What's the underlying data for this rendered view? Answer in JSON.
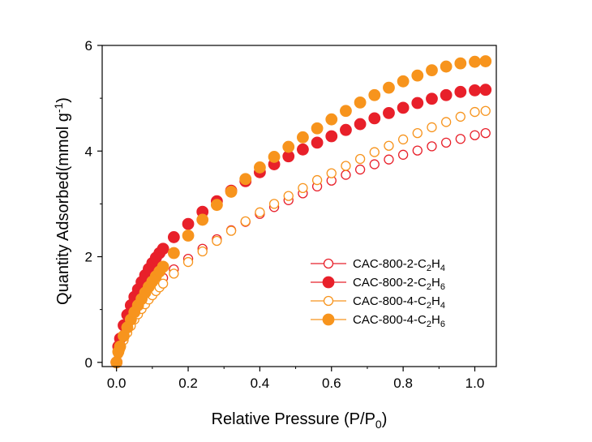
{
  "chart_data": {
    "type": "scatter",
    "xlabel": "Relative Pressure (P/P0)",
    "xlabel_parts": {
      "main": "Relative Pressure (P/P",
      "sub": "0",
      "tail": ")"
    },
    "ylabel": "Quantity Adsorbed(mmol g-1)",
    "ylabel_parts": {
      "main": "Quantity Adsorbed(mmol g",
      "sup": "-1",
      "tail": ")"
    },
    "xlim": [
      -0.04,
      1.06
    ],
    "ylim": [
      -0.08,
      6.0
    ],
    "xticks": [
      "0.0",
      "0.2",
      "0.4",
      "0.6",
      "0.8",
      "1.0"
    ],
    "yticks": [
      "0",
      "2",
      "4",
      "6"
    ],
    "grid": false,
    "legend_position": "lower-right",
    "series": [
      {
        "name": "CAC-800-2-C2H4",
        "label_parts": {
          "main": "CAC-800-2-C",
          "sub1": "2",
          "mid": "H",
          "sub2": "4"
        },
        "color": "#e8202a",
        "marker": "open-circle",
        "x": [
          0.0,
          0.005,
          0.01,
          0.02,
          0.03,
          0.04,
          0.05,
          0.06,
          0.07,
          0.08,
          0.09,
          0.1,
          0.11,
          0.12,
          0.13,
          0.16,
          0.2,
          0.24,
          0.28,
          0.32,
          0.36,
          0.4,
          0.44,
          0.48,
          0.52,
          0.56,
          0.6,
          0.64,
          0.68,
          0.72,
          0.76,
          0.8,
          0.84,
          0.88,
          0.92,
          0.96,
          1.0,
          1.03
        ],
        "y": [
          0.0,
          0.22,
          0.33,
          0.52,
          0.67,
          0.81,
          0.93,
          1.04,
          1.13,
          1.22,
          1.31,
          1.39,
          1.46,
          1.53,
          1.6,
          1.76,
          1.96,
          2.15,
          2.33,
          2.5,
          2.66,
          2.81,
          2.94,
          3.07,
          3.2,
          3.33,
          3.44,
          3.55,
          3.65,
          3.75,
          3.84,
          3.93,
          4.01,
          4.09,
          4.16,
          4.23,
          4.3,
          4.34
        ]
      },
      {
        "name": "CAC-800-2-C2H6",
        "label_parts": {
          "main": "CAC-800-2-C",
          "sub1": "2",
          "mid": "H",
          "sub2": "6"
        },
        "color": "#e8202a",
        "marker": "filled-circle",
        "x": [
          0.0,
          0.005,
          0.01,
          0.02,
          0.03,
          0.04,
          0.05,
          0.06,
          0.07,
          0.08,
          0.09,
          0.1,
          0.11,
          0.12,
          0.13,
          0.16,
          0.2,
          0.24,
          0.28,
          0.32,
          0.36,
          0.4,
          0.44,
          0.48,
          0.52,
          0.56,
          0.6,
          0.64,
          0.68,
          0.72,
          0.76,
          0.8,
          0.84,
          0.88,
          0.92,
          0.96,
          1.0,
          1.03
        ],
        "y": [
          0.0,
          0.3,
          0.45,
          0.7,
          0.9,
          1.08,
          1.24,
          1.38,
          1.52,
          1.65,
          1.77,
          1.88,
          1.98,
          2.07,
          2.15,
          2.37,
          2.62,
          2.85,
          3.05,
          3.25,
          3.43,
          3.6,
          3.75,
          3.9,
          4.03,
          4.16,
          4.28,
          4.4,
          4.51,
          4.62,
          4.72,
          4.82,
          4.91,
          4.99,
          5.06,
          5.12,
          5.15,
          5.16
        ]
      },
      {
        "name": "CAC-800-4-C2H4",
        "label_parts": {
          "main": "CAC-800-4-C",
          "sub1": "2",
          "mid": "H",
          "sub2": "4"
        },
        "color": "#f7941d",
        "marker": "open-circle",
        "x": [
          0.0,
          0.005,
          0.01,
          0.02,
          0.03,
          0.04,
          0.05,
          0.06,
          0.07,
          0.08,
          0.09,
          0.1,
          0.11,
          0.12,
          0.13,
          0.16,
          0.2,
          0.24,
          0.28,
          0.32,
          0.36,
          0.4,
          0.44,
          0.48,
          0.52,
          0.56,
          0.6,
          0.64,
          0.68,
          0.72,
          0.76,
          0.8,
          0.84,
          0.88,
          0.92,
          0.96,
          1.0,
          1.03
        ],
        "y": [
          0.0,
          0.16,
          0.25,
          0.42,
          0.56,
          0.69,
          0.81,
          0.91,
          1.01,
          1.1,
          1.19,
          1.27,
          1.35,
          1.42,
          1.49,
          1.68,
          1.9,
          2.1,
          2.3,
          2.49,
          2.67,
          2.84,
          3.0,
          3.15,
          3.3,
          3.45,
          3.58,
          3.72,
          3.85,
          3.98,
          4.1,
          4.22,
          4.34,
          4.45,
          4.55,
          4.65,
          4.74,
          4.76
        ]
      },
      {
        "name": "CAC-800-4-C2H6",
        "label_parts": {
          "main": "CAC-800-4-C",
          "sub1": "2",
          "mid": "H",
          "sub2": "6"
        },
        "color": "#f7941d",
        "marker": "filled-circle",
        "x": [
          0.0,
          0.005,
          0.01,
          0.02,
          0.03,
          0.04,
          0.05,
          0.06,
          0.07,
          0.08,
          0.09,
          0.1,
          0.11,
          0.12,
          0.13,
          0.16,
          0.2,
          0.24,
          0.28,
          0.32,
          0.36,
          0.4,
          0.44,
          0.48,
          0.52,
          0.56,
          0.6,
          0.64,
          0.68,
          0.72,
          0.76,
          0.8,
          0.84,
          0.88,
          0.92,
          0.96,
          1.0,
          1.03
        ],
        "y": [
          0.0,
          0.2,
          0.3,
          0.5,
          0.66,
          0.81,
          0.95,
          1.08,
          1.2,
          1.32,
          1.43,
          1.53,
          1.63,
          1.72,
          1.81,
          2.07,
          2.4,
          2.7,
          2.98,
          3.23,
          3.47,
          3.69,
          3.89,
          4.08,
          4.26,
          4.43,
          4.6,
          4.76,
          4.92,
          5.06,
          5.2,
          5.32,
          5.43,
          5.53,
          5.6,
          5.66,
          5.69,
          5.7
        ]
      }
    ]
  }
}
